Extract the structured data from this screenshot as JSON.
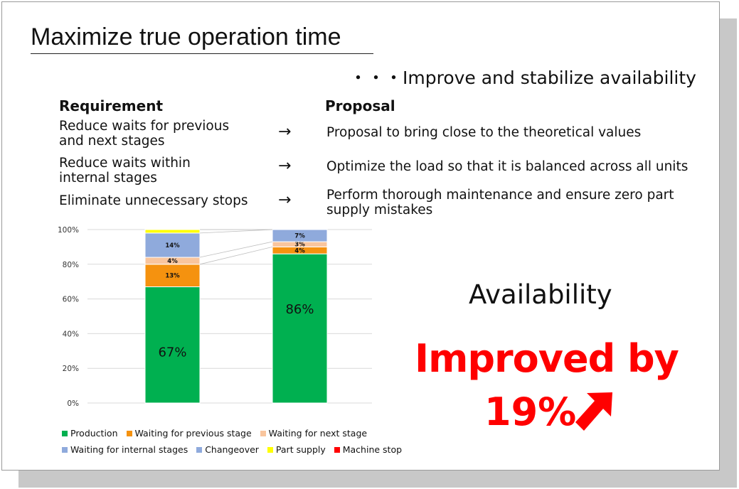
{
  "title": "Maximize true operation time",
  "subtitle": "・・・Improve and stabilize availability",
  "headers": {
    "requirement": "Requirement",
    "proposal": "Proposal"
  },
  "rows": [
    {
      "requirement": [
        "Reduce waits for previous",
        "and next stages"
      ],
      "arrow": "→",
      "proposal": [
        "Proposal to bring close to the theoretical values"
      ]
    },
    {
      "requirement": [
        "Reduce waits within",
        "internal stages"
      ],
      "arrow": "→",
      "proposal": [
        "Optimize the load so that it is balanced across all units"
      ]
    },
    {
      "requirement": [
        "Eliminate unnecessary stops"
      ],
      "arrow": "→",
      "proposal": [
        "Perform thorough maintenance and ensure zero part",
        "supply mistakes"
      ]
    }
  ],
  "chart_data": {
    "type": "bar",
    "stacked": true,
    "categories": [
      "",
      ""
    ],
    "series": [
      {
        "name": "Production",
        "color": "#00b050",
        "values": [
          67,
          86
        ],
        "labels": [
          "67%",
          "86%"
        ]
      },
      {
        "name": "Waiting for previous stage",
        "color": "#f5920f",
        "values": [
          13,
          4
        ],
        "labels": [
          "13%",
          "4%"
        ]
      },
      {
        "name": "Waiting for next stage",
        "color": "#f9c59d",
        "values": [
          4,
          3
        ],
        "labels": [
          "4%",
          "3%"
        ]
      },
      {
        "name": "Waiting for internal stages",
        "color": "#8faadc",
        "values": [
          14,
          7
        ],
        "labels": [
          "14%",
          "7%"
        ]
      },
      {
        "name": "Changeover",
        "color": "#8faadc",
        "values": [
          0,
          0
        ],
        "labels": [
          "",
          ""
        ]
      },
      {
        "name": "Part supply",
        "color": "#ffff00",
        "values": [
          2,
          0
        ],
        "labels": [
          "",
          ""
        ]
      },
      {
        "name": "Machine stop",
        "color": "#ff0000",
        "values": [
          0,
          0
        ],
        "labels": [
          "",
          ""
        ]
      }
    ],
    "yticks": [
      "0%",
      "20%",
      "40%",
      "60%",
      "80%",
      "100%"
    ],
    "ylim": [
      0,
      100
    ],
    "grid": true,
    "legend": "bottom"
  },
  "result": {
    "label": "Availability",
    "line1": "Improved by",
    "line2": "19%",
    "color": "#ff0000"
  }
}
